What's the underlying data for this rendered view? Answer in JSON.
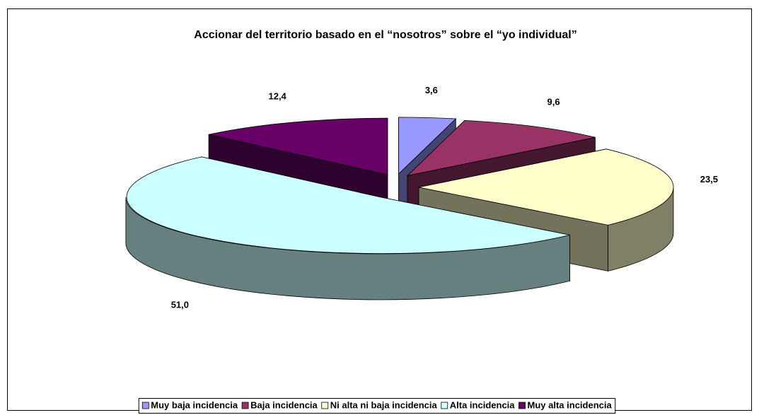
{
  "chart_data": {
    "type": "pie3d",
    "title": "Accionar del territorio basado en el “nosotros” sobre el “yo individual”",
    "categories": [
      "Muy baja incidencia",
      "Baja incidencia",
      "Ni alta ni baja incidencia",
      "Alta incidencia",
      "Muy alta incidencia"
    ],
    "values": [
      3.6,
      9.6,
      23.5,
      51.0,
      12.4
    ],
    "value_labels": [
      "3,6",
      "9,6",
      "23,5",
      "51,0",
      "12,4"
    ],
    "colors": [
      "#9999ff",
      "#993366",
      "#ffffcc",
      "#ccffff",
      "#660066"
    ],
    "legend": "bottom"
  }
}
